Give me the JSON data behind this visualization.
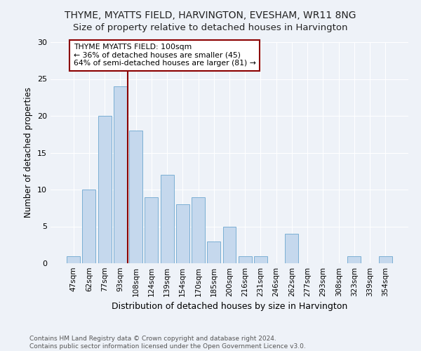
{
  "title": "THYME, MYATTS FIELD, HARVINGTON, EVESHAM, WR11 8NG",
  "subtitle": "Size of property relative to detached houses in Harvington",
  "xlabel": "Distribution of detached houses by size in Harvington",
  "ylabel": "Number of detached properties",
  "bar_values": [
    1,
    10,
    20,
    24,
    18,
    9,
    12,
    8,
    9,
    3,
    5,
    1,
    1,
    0,
    4,
    0,
    0,
    0,
    1,
    0,
    1
  ],
  "categories": [
    "47sqm",
    "62sqm",
    "77sqm",
    "93sqm",
    "108sqm",
    "124sqm",
    "139sqm",
    "154sqm",
    "170sqm",
    "185sqm",
    "200sqm",
    "216sqm",
    "231sqm",
    "246sqm",
    "262sqm",
    "277sqm",
    "293sqm",
    "308sqm",
    "323sqm",
    "339sqm",
    "354sqm"
  ],
  "bar_color": "#c5d8ed",
  "bar_edge_color": "#7bafd4",
  "vline_x": 3.5,
  "vline_color": "#8b0000",
  "annotation_text": "THYME MYATTS FIELD: 100sqm\n← 36% of detached houses are smaller (45)\n64% of semi-detached houses are larger (81) →",
  "annotation_box_color": "#ffffff",
  "annotation_edge_color": "#8b0000",
  "ylim": [
    0,
    30
  ],
  "yticks": [
    0,
    5,
    10,
    15,
    20,
    25,
    30
  ],
  "footer_line1": "Contains HM Land Registry data © Crown copyright and database right 2024.",
  "footer_line2": "Contains public sector information licensed under the Open Government Licence v3.0.",
  "bg_color": "#eef2f8",
  "title_fontsize": 10,
  "subtitle_fontsize": 9.5,
  "grid_color": "#ffffff"
}
